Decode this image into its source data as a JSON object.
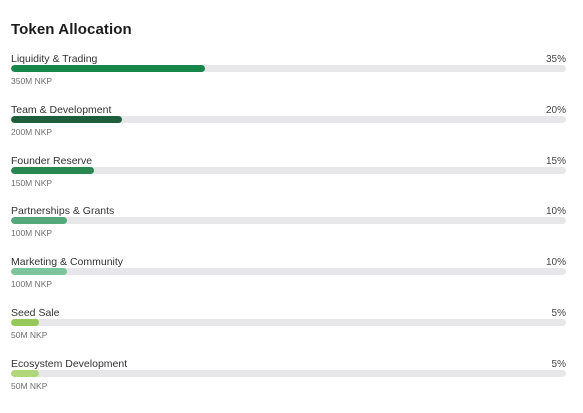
{
  "header": {
    "title": "Token Allocation"
  },
  "chart_data": {
    "type": "bar",
    "orientation": "horizontal",
    "title": "Token Allocation",
    "xlim": [
      0,
      100
    ],
    "unit": "%",
    "categories": [
      "Liquidity & Trading",
      "Team & Development",
      "Founder Reserve",
      "Partnerships & Grants",
      "Marketing & Community",
      "Seed Sale",
      "Ecosystem Development"
    ],
    "values": [
      35,
      20,
      15,
      10,
      10,
      5,
      5
    ],
    "items": [
      {
        "label": "Liquidity & Trading",
        "percent_label": "35%",
        "value": 35,
        "amount": "350M NKP",
        "color": "#17864a"
      },
      {
        "label": "Team & Development",
        "percent_label": "20%",
        "value": 20,
        "amount": "200M NKP",
        "color": "#1d5e3b"
      },
      {
        "label": "Founder Reserve",
        "percent_label": "15%",
        "value": 15,
        "amount": "150M NKP",
        "color": "#2a8752"
      },
      {
        "label": "Partnerships & Grants",
        "percent_label": "10%",
        "value": 10,
        "amount": "100M NKP",
        "color": "#56a87a"
      },
      {
        "label": "Marketing & Community",
        "percent_label": "10%",
        "value": 10,
        "amount": "100M NKP",
        "color": "#7cc49a"
      },
      {
        "label": "Seed Sale",
        "percent_label": "5%",
        "value": 5,
        "amount": "50M NKP",
        "color": "#96c85a"
      },
      {
        "label": "Ecosystem Development",
        "percent_label": "5%",
        "value": 5,
        "amount": "50M NKP",
        "color": "#b1d67a"
      }
    ],
    "track_color": "#e7e7e9"
  }
}
